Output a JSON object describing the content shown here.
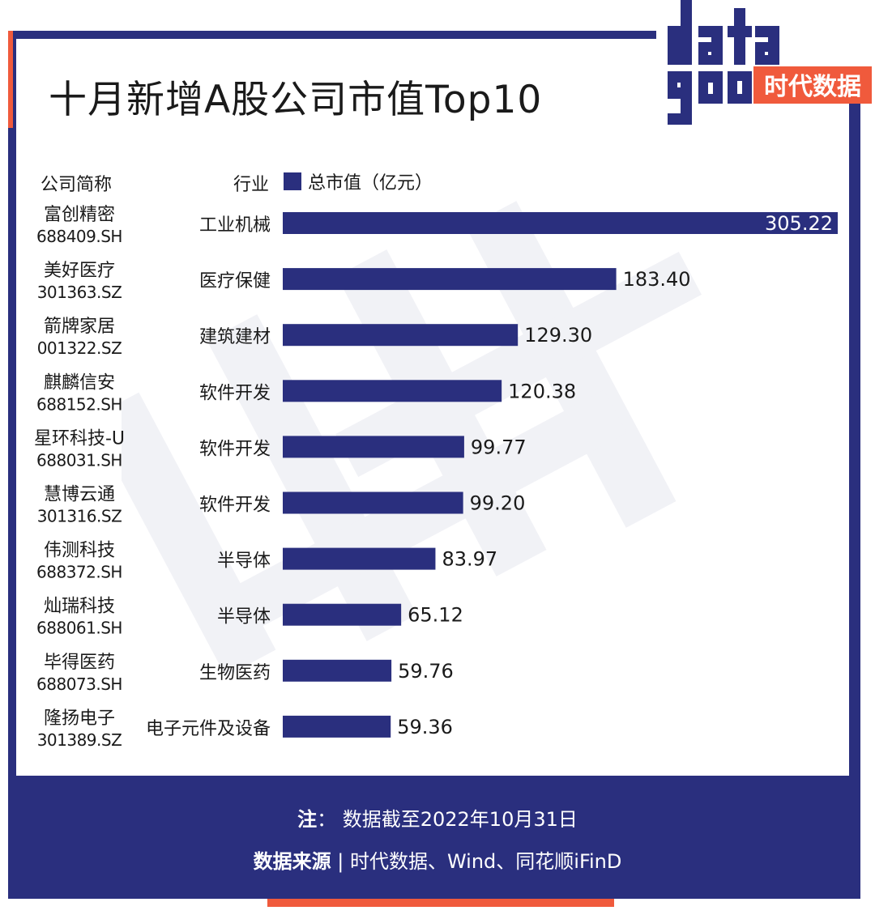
{
  "title": "十月新增A股公司市值Top10",
  "logo": {
    "line1": "data",
    "line2": "good",
    "cn": "时代数据"
  },
  "headers": {
    "company": "公司简称",
    "industry": "行业",
    "legend": "总市值（亿元）"
  },
  "colors": {
    "bar": "#2a2f7e",
    "frame": "#2a2f7e",
    "accent": "#f05a3c",
    "bar_label_inside": "#ffffff",
    "text": "#1a1a1a"
  },
  "chart_data": {
    "type": "bar",
    "orientation": "horizontal",
    "title": "十月新增A股公司市值Top10",
    "legend": "总市值（亿元）",
    "companies": [
      "富创精密",
      "美好医疗",
      "箭牌家居",
      "麒麟信安",
      "星环科技-U",
      "慧博云通",
      "伟测科技",
      "灿瑞科技",
      "毕得医药",
      "隆扬电子"
    ],
    "codes": [
      "688409.SH",
      "301363.SZ",
      "001322.SZ",
      "688152.SH",
      "688031.SH",
      "301316.SZ",
      "688372.SH",
      "688061.SH",
      "688073.SH",
      "301389.SZ"
    ],
    "industries": [
      "工业机械",
      "医疗保健",
      "建筑建材",
      "软件开发",
      "软件开发",
      "软件开发",
      "半导体",
      "半导体",
      "生物医药",
      "电子元件及设备"
    ],
    "values": [
      305.22,
      183.4,
      129.3,
      120.38,
      99.77,
      99.2,
      83.97,
      65.12,
      59.76,
      59.36
    ],
    "value_labels": [
      "305.22",
      "183.40",
      "129.30",
      "120.38",
      "99.77",
      "99.20",
      "83.97",
      "65.12",
      "59.76",
      "59.36"
    ],
    "xlim": [
      0,
      305.22
    ]
  },
  "footer": {
    "note_label": "注",
    "note_text": "： 数据截至2022年10月31日",
    "source_label": "数据来源",
    "source_text": " | 时代数据、Wind、同花顺iFinD"
  }
}
